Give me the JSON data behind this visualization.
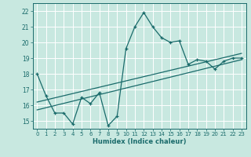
{
  "xlabel": "Humidex (Indice chaleur)",
  "background_color": "#c8e8e0",
  "grid_color": "#ffffff",
  "line_color": "#1a6b6b",
  "xlim": [
    -0.5,
    23.5
  ],
  "ylim": [
    14.5,
    22.5
  ],
  "xticks": [
    0,
    1,
    2,
    3,
    4,
    5,
    6,
    7,
    8,
    9,
    10,
    11,
    12,
    13,
    14,
    15,
    16,
    17,
    18,
    19,
    20,
    21,
    22,
    23
  ],
  "yticks": [
    15,
    16,
    17,
    18,
    19,
    20,
    21,
    22
  ],
  "zigzag_x": [
    0,
    1,
    2,
    3,
    4,
    5,
    6,
    7,
    8,
    9,
    10,
    11,
    12,
    13,
    14,
    15,
    16,
    17,
    18,
    19,
    20,
    21,
    22,
    23
  ],
  "zigzag_y": [
    18.0,
    16.6,
    15.5,
    15.5,
    14.8,
    16.5,
    16.1,
    16.8,
    14.7,
    15.3,
    19.6,
    21.0,
    21.9,
    21.0,
    20.3,
    20.0,
    20.1,
    18.6,
    18.9,
    18.8,
    18.3,
    18.8,
    19.0,
    19.0
  ],
  "trend1_x": [
    0,
    23
  ],
  "trend1_y": [
    15.7,
    18.9
  ],
  "trend2_x": [
    0,
    23
  ],
  "trend2_y": [
    16.2,
    19.3
  ]
}
